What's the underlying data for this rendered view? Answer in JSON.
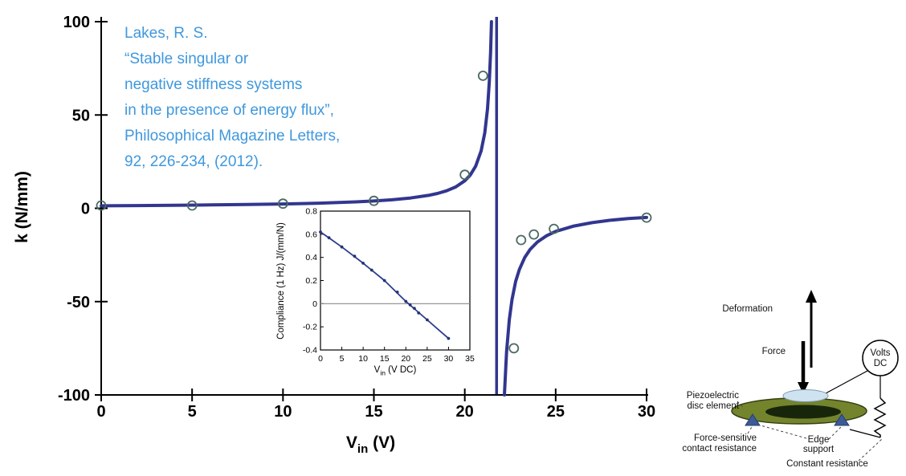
{
  "citation": {
    "color": "#3f98dd",
    "lines": [
      "Lakes, R. S.",
      "“Stable singular or",
      "negative stiffness systems",
      "in the presence of energy flux”,",
      "Philosophical Magazine Letters,",
      "92, 226-234, (2012)."
    ]
  },
  "chart_data": [
    {
      "id": "main",
      "type": "line",
      "title": "",
      "xlabel": "V_in (V)",
      "xlabel_parts": {
        "pre": "V",
        "sub": "in",
        "post": " (V)"
      },
      "ylabel": "k (N/mm)",
      "xlim": [
        0,
        30
      ],
      "ylim": [
        -100,
        100
      ],
      "xticks": [
        0,
        5,
        10,
        15,
        20,
        25,
        30
      ],
      "yticks": [
        100,
        50,
        0,
        -50,
        -100
      ],
      "grid": false,
      "legend": false,
      "asymptote_x": 21.75,
      "line_color": "#32368f",
      "marker_color": "#4b6a63",
      "branches": [
        {
          "x": [
            0,
            2,
            4,
            6,
            8,
            10,
            12,
            14,
            15,
            16,
            17,
            18,
            18.5,
            19,
            19.5,
            20,
            20.3,
            20.6,
            20.9,
            21.1,
            21.25,
            21.35,
            21.42,
            21.47
          ],
          "y": [
            1.35,
            1.47,
            1.61,
            1.79,
            2.02,
            2.33,
            2.77,
            3.44,
            3.92,
            4.57,
            5.5,
            6.92,
            7.96,
            9.39,
            11.46,
            14.74,
            17.81,
            22.52,
            30.69,
            40.52,
            53.39,
            67.77,
            83.53,
            100
          ]
        },
        {
          "x": [
            22.18,
            22.3,
            22.45,
            22.6,
            22.8,
            23,
            23.3,
            23.6,
            24,
            24.5,
            25,
            26,
            27,
            28,
            29,
            30
          ],
          "y": [
            -100,
            -76.9,
            -59.7,
            -48.8,
            -39.2,
            -32.8,
            -26.3,
            -22,
            -18,
            -14.7,
            -12.4,
            -9.5,
            -7.7,
            -6.4,
            -5.5,
            -4.9
          ]
        }
      ],
      "points": {
        "x": [
          0,
          5,
          10,
          15,
          20,
          21,
          22.7,
          23.1,
          23.8,
          24.9,
          30
        ],
        "y": [
          1.5,
          1.5,
          2.5,
          4,
          18,
          71,
          -75,
          -17,
          -14,
          -11,
          -5
        ]
      }
    },
    {
      "id": "inset",
      "type": "line",
      "title": "",
      "xlabel": "V_in (V DC)",
      "xlabel_parts": {
        "pre": "V",
        "sub": "in",
        "post": " (V DC)"
      },
      "ylabel": "Compliance (1 Hz) J/(mm/N)",
      "xlim": [
        0,
        35
      ],
      "ylim": [
        -0.4,
        0.8
      ],
      "xticks": [
        0,
        5,
        10,
        15,
        20,
        25,
        30,
        35
      ],
      "yticks": [
        0.8,
        0.6,
        0.4,
        0.2,
        0,
        -0.2,
        -0.4
      ],
      "grid": false,
      "legend": false,
      "zero_line": 0,
      "line_color": "#2c3c8f",
      "marker_color": "#25346f",
      "zero_line_color": "#8a8a8a",
      "curve": {
        "x": [
          0,
          2.5,
          5,
          7.5,
          10,
          12.5,
          15,
          17.5,
          20,
          22.5,
          25,
          27.5,
          30
        ],
        "y": [
          0.62,
          0.555,
          0.49,
          0.42,
          0.35,
          0.275,
          0.2,
          0.11,
          0.02,
          -0.06,
          -0.14,
          -0.22,
          -0.3
        ]
      },
      "points": {
        "x": [
          0,
          2,
          5,
          8,
          10,
          12,
          15,
          18,
          20,
          21,
          22,
          23,
          25,
          30
        ],
        "y": [
          0.62,
          0.57,
          0.49,
          0.41,
          0.35,
          0.29,
          0.2,
          0.1,
          0.02,
          -0.01,
          -0.04,
          -0.08,
          -0.14,
          -0.3
        ]
      }
    }
  ],
  "diagram": {
    "deformation": "Deformation",
    "force": "Force",
    "volts_line1": "Volts",
    "volts_line2": "DC",
    "piezo_line1": "Piezoelectric",
    "piezo_line2": "disc element",
    "contact_line1": "Force-sensitive",
    "contact_line2": "contact resistance",
    "edge_line1": "Edge",
    "edge_line2": "support",
    "constant": "Constant resistance",
    "colors": {
      "disc": "#74842d",
      "disc_edge": "#333f10",
      "disc_center": "#17260b",
      "electrode": "#cfe2ef",
      "electrode_edge": "#7b99ae",
      "support": "#3c5a96",
      "support_edge": "#243d6d"
    }
  }
}
